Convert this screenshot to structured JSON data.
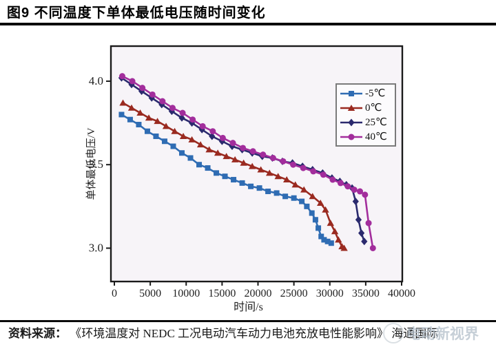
{
  "page": {
    "title": "图9  不同温度下单体最低电压随时间变化"
  },
  "source": {
    "prefix": "资料来源：",
    "text": "《环境温度对 NEDC 工况电动汽车动力电池充放电性能影响》 海通国际"
  },
  "watermark": {
    "text": "电动新视界"
  },
  "chart_data": {
    "type": "line",
    "title": "",
    "xlabel": "时间/s",
    "ylabel": "单体最低电压/V",
    "xlim": [
      0,
      40000
    ],
    "ylim": [
      2.8,
      4.21
    ],
    "x_ticks": [
      0,
      5000,
      10000,
      15000,
      20000,
      25000,
      30000,
      35000,
      40000
    ],
    "y_ticks": [
      3.0,
      3.5,
      4.0
    ],
    "grid": false,
    "legend_position": "top-right",
    "plot_bg": "#f7f4f8",
    "axis_color": "#1a1a1a",
    "series": [
      {
        "name": "-5℃",
        "color": "#2f6cb3",
        "marker": "square",
        "points": [
          [
            1000,
            3.8
          ],
          [
            2200,
            3.77
          ],
          [
            3400,
            3.74
          ],
          [
            4600,
            3.7
          ],
          [
            5800,
            3.67
          ],
          [
            7000,
            3.64
          ],
          [
            8200,
            3.61
          ],
          [
            9400,
            3.57
          ],
          [
            10600,
            3.54
          ],
          [
            11800,
            3.5
          ],
          [
            13000,
            3.48
          ],
          [
            14200,
            3.45
          ],
          [
            15400,
            3.43
          ],
          [
            16600,
            3.41
          ],
          [
            17800,
            3.39
          ],
          [
            19000,
            3.37
          ],
          [
            20200,
            3.36
          ],
          [
            21400,
            3.34
          ],
          [
            22600,
            3.33
          ],
          [
            23800,
            3.31
          ],
          [
            25000,
            3.3
          ],
          [
            26100,
            3.28
          ],
          [
            26800,
            3.25
          ],
          [
            27500,
            3.21
          ],
          [
            28000,
            3.17
          ],
          [
            28400,
            3.12
          ],
          [
            28800,
            3.07
          ],
          [
            29200,
            3.05
          ],
          [
            29700,
            3.04
          ],
          [
            30200,
            3.03
          ]
        ]
      },
      {
        "name": "0℃",
        "color": "#9a2a20",
        "marker": "triangle",
        "points": [
          [
            1200,
            3.87
          ],
          [
            2400,
            3.84
          ],
          [
            3600,
            3.81
          ],
          [
            4800,
            3.78
          ],
          [
            6000,
            3.76
          ],
          [
            7200,
            3.73
          ],
          [
            8400,
            3.7
          ],
          [
            9600,
            3.67
          ],
          [
            10800,
            3.65
          ],
          [
            12000,
            3.62
          ],
          [
            13200,
            3.59
          ],
          [
            14400,
            3.57
          ],
          [
            15600,
            3.55
          ],
          [
            16800,
            3.53
          ],
          [
            18000,
            3.51
          ],
          [
            19200,
            3.49
          ],
          [
            20400,
            3.47
          ],
          [
            21600,
            3.45
          ],
          [
            22800,
            3.43
          ],
          [
            24000,
            3.41
          ],
          [
            25200,
            3.38
          ],
          [
            26400,
            3.35
          ],
          [
            27600,
            3.31
          ],
          [
            28700,
            3.27
          ],
          [
            29400,
            3.23
          ],
          [
            30100,
            3.15
          ],
          [
            30700,
            3.1
          ],
          [
            31200,
            3.05
          ],
          [
            31700,
            3.01
          ],
          [
            32000,
            3.0
          ]
        ]
      },
      {
        "name": "25℃",
        "color": "#2b2a6e",
        "marker": "diamond",
        "points": [
          [
            1000,
            4.02
          ],
          [
            2400,
            3.98
          ],
          [
            3800,
            3.94
          ],
          [
            5200,
            3.9
          ],
          [
            6600,
            3.86
          ],
          [
            8000,
            3.82
          ],
          [
            9400,
            3.78
          ],
          [
            10800,
            3.75
          ],
          [
            12200,
            3.71
          ],
          [
            13600,
            3.67
          ],
          [
            15000,
            3.64
          ],
          [
            16400,
            3.61
          ],
          [
            17800,
            3.59
          ],
          [
            19200,
            3.57
          ],
          [
            20600,
            3.55
          ],
          [
            22000,
            3.54
          ],
          [
            23400,
            3.52
          ],
          [
            24800,
            3.51
          ],
          [
            26200,
            3.49
          ],
          [
            27600,
            3.47
          ],
          [
            29000,
            3.45
          ],
          [
            30300,
            3.42
          ],
          [
            31400,
            3.4
          ],
          [
            32300,
            3.38
          ],
          [
            33100,
            3.36
          ],
          [
            33600,
            3.28
          ],
          [
            34000,
            3.17
          ],
          [
            34400,
            3.09
          ],
          [
            34800,
            3.04
          ]
        ]
      },
      {
        "name": "40℃",
        "color": "#a22d9c",
        "marker": "circle",
        "points": [
          [
            1100,
            4.03
          ],
          [
            2500,
            4.0
          ],
          [
            3900,
            3.96
          ],
          [
            5300,
            3.92
          ],
          [
            6700,
            3.88
          ],
          [
            8100,
            3.84
          ],
          [
            9500,
            3.81
          ],
          [
            10900,
            3.77
          ],
          [
            12300,
            3.73
          ],
          [
            13700,
            3.7
          ],
          [
            15100,
            3.66
          ],
          [
            16500,
            3.63
          ],
          [
            17900,
            3.6
          ],
          [
            19300,
            3.58
          ],
          [
            20700,
            3.56
          ],
          [
            22100,
            3.54
          ],
          [
            23500,
            3.52
          ],
          [
            24900,
            3.5
          ],
          [
            26300,
            3.48
          ],
          [
            27700,
            3.46
          ],
          [
            29100,
            3.44
          ],
          [
            30400,
            3.41
          ],
          [
            31500,
            3.39
          ],
          [
            32500,
            3.37
          ],
          [
            33400,
            3.35
          ],
          [
            34200,
            3.34
          ],
          [
            34900,
            3.32
          ],
          [
            35400,
            3.15
          ],
          [
            36000,
            3.0
          ]
        ]
      }
    ]
  }
}
